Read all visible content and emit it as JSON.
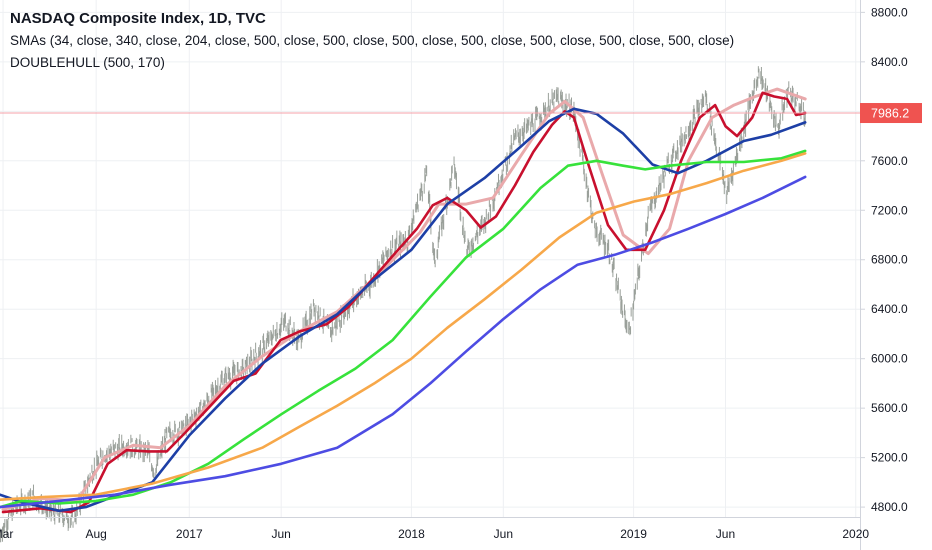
{
  "header": {
    "title": "NASDAQ Composite Index, 1D, TVC",
    "indicator_sma": "SMAs (34, close, 340, close, 204, close, 500, close, 500, close, 500, close, 500, close, 500, close, 500, close, 500, close)",
    "indicator_hull": "DOUBLEHULL (500, 170)"
  },
  "colors": {
    "background": "#ffffff",
    "grid": "#eef0f3",
    "axis_border": "#d1d4dc",
    "candles": "#9aa09a",
    "last_price_line": "#f4a0a8",
    "last_price_badge": "#ef5350"
  },
  "chart_data": {
    "type": "line",
    "yaxis": {
      "ticks": [
        8800,
        8400,
        8000,
        7600,
        7200,
        6800,
        6400,
        6000,
        5600,
        5200,
        4800
      ],
      "tick_labels": [
        "8800.0",
        "8400.0",
        "8000.0",
        "7600.0",
        "7200.0",
        "6800.0",
        "6400.0",
        "6000.0",
        "5600.0",
        "5200.0",
        "4800.0"
      ],
      "range": [
        4720,
        8900
      ]
    },
    "xaxis": {
      "range": [
        "2016-02-25",
        "2020-01-08"
      ],
      "ticks": [
        {
          "date": "2016-03-01",
          "label": "Mar"
        },
        {
          "date": "2016-08-01",
          "label": "Aug"
        },
        {
          "date": "2017-01-01",
          "label": "2017"
        },
        {
          "date": "2017-06-01",
          "label": "Jun"
        },
        {
          "date": "2018-01-01",
          "label": "2018"
        },
        {
          "date": "2018-06-01",
          "label": "Jun"
        },
        {
          "date": "2019-01-01",
          "label": "2019"
        },
        {
          "date": "2019-06-01",
          "label": "Jun"
        },
        {
          "date": "2020-01-01",
          "label": "2020"
        }
      ]
    },
    "last_price": {
      "value": 7986.2,
      "label": "7986.2"
    },
    "price_close": {
      "name": "NASDAQ Composite Index",
      "color": "#9aa09a",
      "points": [
        [
          "2016-02-25",
          4580
        ],
        [
          "2016-03-20",
          4800
        ],
        [
          "2016-04-20",
          4880
        ],
        [
          "2016-05-20",
          4760
        ],
        [
          "2016-06-25",
          4700
        ],
        [
          "2016-07-25",
          5080
        ],
        [
          "2016-08-15",
          5230
        ],
        [
          "2016-09-20",
          5300
        ],
        [
          "2016-10-25",
          5250
        ],
        [
          "2016-11-05",
          5080
        ],
        [
          "2016-11-25",
          5380
        ],
        [
          "2016-12-25",
          5440
        ],
        [
          "2017-01-25",
          5620
        ],
        [
          "2017-02-28",
          5850
        ],
        [
          "2017-03-31",
          5910
        ],
        [
          "2017-04-25",
          6050
        ],
        [
          "2017-06-08",
          6300
        ],
        [
          "2017-06-29",
          6140
        ],
        [
          "2017-07-25",
          6420
        ],
        [
          "2017-08-20",
          6210
        ],
        [
          "2017-09-25",
          6450
        ],
        [
          "2017-10-25",
          6600
        ],
        [
          "2017-11-25",
          6880
        ],
        [
          "2017-12-25",
          6960
        ],
        [
          "2018-01-26",
          7500
        ],
        [
          "2018-02-08",
          6780
        ],
        [
          "2018-03-12",
          7570
        ],
        [
          "2018-04-02",
          6870
        ],
        [
          "2018-05-01",
          7100
        ],
        [
          "2018-06-20",
          7780
        ],
        [
          "2018-07-25",
          7930
        ],
        [
          "2018-08-29",
          8110
        ],
        [
          "2018-09-25",
          8000
        ],
        [
          "2018-10-29",
          7050
        ],
        [
          "2018-11-20",
          6900
        ],
        [
          "2018-12-24",
          6200
        ],
        [
          "2019-01-25",
          7160
        ],
        [
          "2019-02-25",
          7550
        ],
        [
          "2019-04-30",
          8120
        ],
        [
          "2019-06-03",
          7330
        ],
        [
          "2019-07-26",
          8330
        ],
        [
          "2019-08-26",
          7850
        ],
        [
          "2019-09-13",
          8180
        ],
        [
          "2019-10-10",
          7950
        ]
      ]
    },
    "series": [
      {
        "name": "",
        "color": "#e9a9ab",
        "points": [
          [
            "2016-03-01",
            4780
          ],
          [
            "2016-05-01",
            4870
          ],
          [
            "2016-07-01",
            4850
          ],
          [
            "2016-08-15",
            5200
          ],
          [
            "2016-10-01",
            5300
          ],
          [
            "2016-11-15",
            5280
          ],
          [
            "2017-01-01",
            5460
          ],
          [
            "2017-03-01",
            5780
          ],
          [
            "2017-05-01",
            6020
          ],
          [
            "2017-07-01",
            6220
          ],
          [
            "2017-09-01",
            6380
          ],
          [
            "2017-11-01",
            6650
          ],
          [
            "2018-01-15",
            7020
          ],
          [
            "2018-02-15",
            7250
          ],
          [
            "2018-04-01",
            7250
          ],
          [
            "2018-05-15",
            7300
          ],
          [
            "2018-07-01",
            7650
          ],
          [
            "2018-08-15",
            7980
          ],
          [
            "2018-09-10",
            8080
          ],
          [
            "2018-10-10",
            7950
          ],
          [
            "2018-11-10",
            7500
          ],
          [
            "2018-12-15",
            7000
          ],
          [
            "2019-01-25",
            6850
          ],
          [
            "2019-03-01",
            7050
          ],
          [
            "2019-04-01",
            7600
          ],
          [
            "2019-05-10",
            7950
          ],
          [
            "2019-06-15",
            8050
          ],
          [
            "2019-07-20",
            8120
          ],
          [
            "2019-08-25",
            8180
          ],
          [
            "2019-10-10",
            8100
          ]
        ]
      },
      {
        "name": "",
        "color": "#c8102e",
        "points": [
          [
            "2016-03-01",
            4760
          ],
          [
            "2016-05-01",
            4790
          ],
          [
            "2016-06-20",
            4760
          ],
          [
            "2016-07-20",
            4840
          ],
          [
            "2016-08-20",
            5150
          ],
          [
            "2016-09-20",
            5260
          ],
          [
            "2016-10-25",
            5250
          ],
          [
            "2016-11-25",
            5250
          ],
          [
            "2016-12-25",
            5400
          ],
          [
            "2017-02-01",
            5600
          ],
          [
            "2017-03-15",
            5820
          ],
          [
            "2017-04-20",
            5880
          ],
          [
            "2017-05-31",
            6150
          ],
          [
            "2017-07-01",
            6220
          ],
          [
            "2017-08-15",
            6280
          ],
          [
            "2017-09-20",
            6420
          ],
          [
            "2017-10-25",
            6620
          ],
          [
            "2017-12-01",
            6830
          ],
          [
            "2018-01-10",
            7050
          ],
          [
            "2018-02-05",
            7240
          ],
          [
            "2018-03-01",
            7300
          ],
          [
            "2018-04-01",
            7200
          ],
          [
            "2018-04-25",
            7060
          ],
          [
            "2018-05-20",
            7150
          ],
          [
            "2018-06-20",
            7400
          ],
          [
            "2018-07-20",
            7670
          ],
          [
            "2018-08-20",
            7890
          ],
          [
            "2018-09-10",
            8000
          ],
          [
            "2018-09-25",
            7950
          ],
          [
            "2018-10-20",
            7550
          ],
          [
            "2018-11-20",
            7080
          ],
          [
            "2018-12-20",
            6880
          ],
          [
            "2019-01-20",
            6880
          ],
          [
            "2019-02-20",
            7200
          ],
          [
            "2019-03-20",
            7600
          ],
          [
            "2019-04-20",
            7950
          ],
          [
            "2019-05-15",
            8050
          ],
          [
            "2019-06-01",
            7880
          ],
          [
            "2019-06-20",
            7800
          ],
          [
            "2019-07-15",
            7950
          ],
          [
            "2019-08-01",
            8150
          ],
          [
            "2019-08-20",
            8120
          ],
          [
            "2019-09-10",
            8100
          ],
          [
            "2019-09-25",
            7970
          ],
          [
            "2019-10-10",
            7986
          ]
        ]
      },
      {
        "name": "",
        "color": "#1d3fa6",
        "points": [
          [
            "2016-02-25",
            4900
          ],
          [
            "2016-04-01",
            4840
          ],
          [
            "2016-06-01",
            4770
          ],
          [
            "2016-07-15",
            4800
          ],
          [
            "2016-09-01",
            4890
          ],
          [
            "2016-11-01",
            5000
          ],
          [
            "2017-01-01",
            5380
          ],
          [
            "2017-03-01",
            5680
          ],
          [
            "2017-05-01",
            5960
          ],
          [
            "2017-07-01",
            6180
          ],
          [
            "2017-09-01",
            6360
          ],
          [
            "2017-11-01",
            6640
          ],
          [
            "2018-01-01",
            6880
          ],
          [
            "2018-03-01",
            7250
          ],
          [
            "2018-05-01",
            7460
          ],
          [
            "2018-07-01",
            7720
          ],
          [
            "2018-08-15",
            7920
          ],
          [
            "2018-09-25",
            8020
          ],
          [
            "2018-11-01",
            7980
          ],
          [
            "2018-12-15",
            7820
          ],
          [
            "2019-02-01",
            7570
          ],
          [
            "2019-03-15",
            7500
          ],
          [
            "2019-05-01",
            7600
          ],
          [
            "2019-07-01",
            7760
          ],
          [
            "2019-08-15",
            7810
          ],
          [
            "2019-10-10",
            7910
          ]
        ]
      },
      {
        "name": "",
        "color": "#37e23b",
        "points": [
          [
            "2016-02-25",
            4800
          ],
          [
            "2016-04-01",
            4850
          ],
          [
            "2016-06-01",
            4830
          ],
          [
            "2016-08-01",
            4850
          ],
          [
            "2016-10-01",
            4900
          ],
          [
            "2016-12-01",
            5000
          ],
          [
            "2017-02-01",
            5150
          ],
          [
            "2017-04-01",
            5350
          ],
          [
            "2017-06-01",
            5550
          ],
          [
            "2017-08-01",
            5740
          ],
          [
            "2017-10-01",
            5920
          ],
          [
            "2017-12-01",
            6150
          ],
          [
            "2018-02-01",
            6500
          ],
          [
            "2018-04-01",
            6820
          ],
          [
            "2018-06-01",
            7050
          ],
          [
            "2018-08-01",
            7380
          ],
          [
            "2018-09-15",
            7560
          ],
          [
            "2018-11-01",
            7600
          ],
          [
            "2018-12-15",
            7560
          ],
          [
            "2019-01-20",
            7530
          ],
          [
            "2019-03-01",
            7560
          ],
          [
            "2019-05-01",
            7590
          ],
          [
            "2019-07-01",
            7590
          ],
          [
            "2019-09-01",
            7620
          ],
          [
            "2019-10-10",
            7680
          ]
        ]
      },
      {
        "name": "",
        "color": "#f7a84a",
        "points": [
          [
            "2016-02-25",
            4860
          ],
          [
            "2016-05-01",
            4880
          ],
          [
            "2016-08-01",
            4900
          ],
          [
            "2016-11-01",
            4990
          ],
          [
            "2017-02-01",
            5120
          ],
          [
            "2017-05-01",
            5280
          ],
          [
            "2017-07-01",
            5450
          ],
          [
            "2017-09-01",
            5620
          ],
          [
            "2017-11-01",
            5800
          ],
          [
            "2018-01-01",
            6000
          ],
          [
            "2018-03-01",
            6250
          ],
          [
            "2018-05-01",
            6480
          ],
          [
            "2018-07-01",
            6720
          ],
          [
            "2018-09-01",
            6980
          ],
          [
            "2018-11-01",
            7180
          ],
          [
            "2019-01-01",
            7270
          ],
          [
            "2019-03-01",
            7330
          ],
          [
            "2019-05-01",
            7420
          ],
          [
            "2019-07-01",
            7520
          ],
          [
            "2019-09-01",
            7600
          ],
          [
            "2019-10-10",
            7660
          ]
        ]
      },
      {
        "name": "",
        "color": "#4d4ce3",
        "points": [
          [
            "2016-02-25",
            4800
          ],
          [
            "2016-06-01",
            4850
          ],
          [
            "2016-09-01",
            4900
          ],
          [
            "2016-12-01",
            4980
          ],
          [
            "2017-03-01",
            5050
          ],
          [
            "2017-06-01",
            5150
          ],
          [
            "2017-09-01",
            5280
          ],
          [
            "2017-12-01",
            5550
          ],
          [
            "2018-02-01",
            5800
          ],
          [
            "2018-04-01",
            6060
          ],
          [
            "2018-06-01",
            6320
          ],
          [
            "2018-08-01",
            6560
          ],
          [
            "2018-10-01",
            6760
          ],
          [
            "2018-12-01",
            6840
          ],
          [
            "2019-02-01",
            6940
          ],
          [
            "2019-04-01",
            7050
          ],
          [
            "2019-06-01",
            7170
          ],
          [
            "2019-08-01",
            7300
          ],
          [
            "2019-10-10",
            7470
          ]
        ]
      }
    ]
  }
}
